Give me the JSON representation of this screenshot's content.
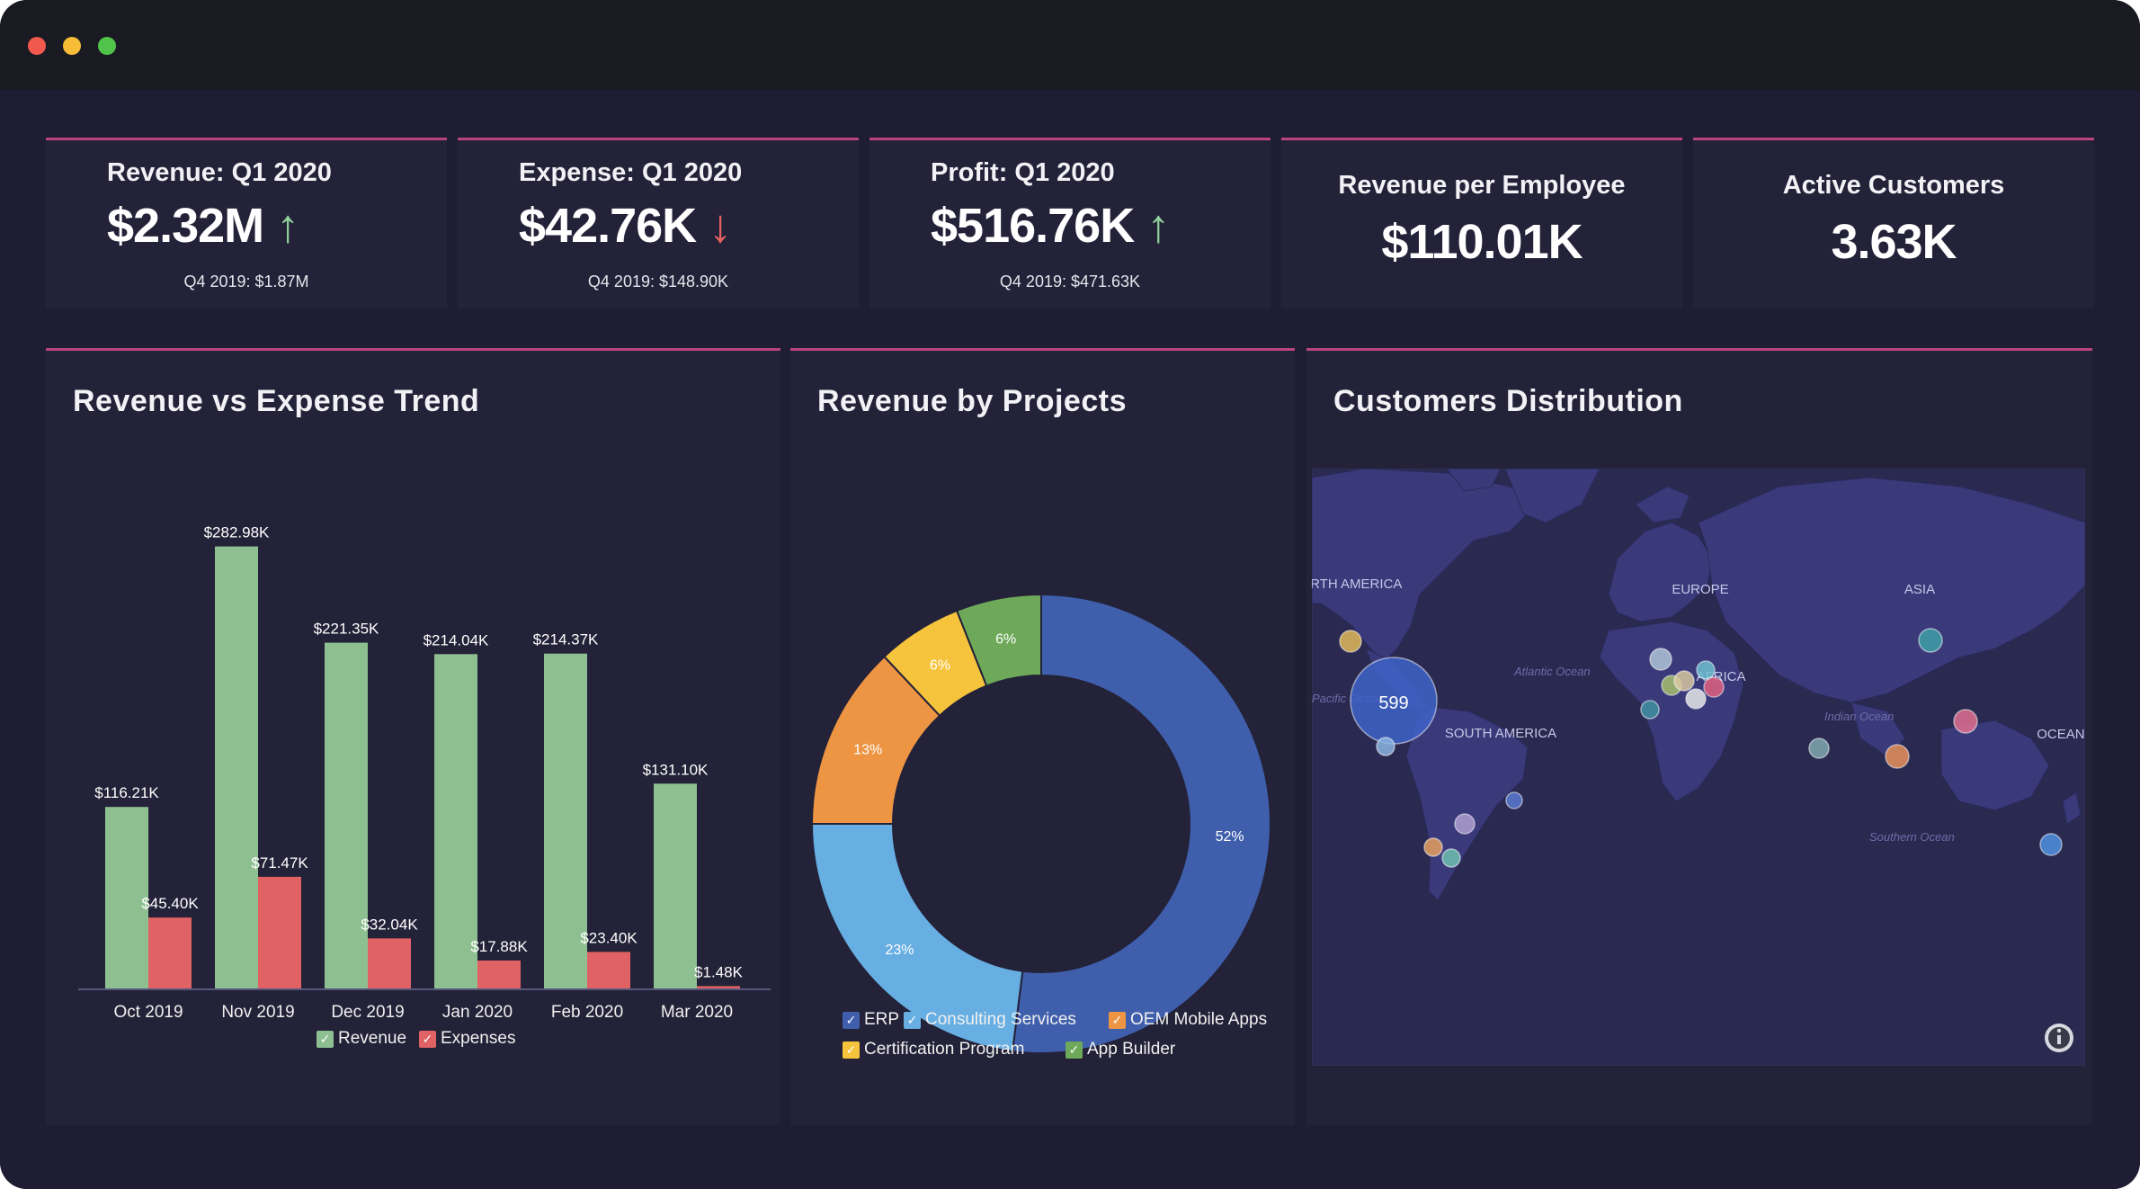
{
  "window": {
    "controls": [
      "close",
      "minimize",
      "maximize"
    ],
    "colors": {
      "close": "#f1594e",
      "minimize": "#f7bd37",
      "maximize": "#52c34a"
    }
  },
  "kpis": [
    {
      "title": "Revenue: Q1 2020",
      "value": "$2.32M",
      "trend": "up",
      "arrow": "↑",
      "subtitle": "Q4 2019: $1.87M"
    },
    {
      "title": "Expense: Q1 2020",
      "value": "$42.76K",
      "trend": "down",
      "arrow": "↓",
      "subtitle": "Q4 2019: $148.90K"
    },
    {
      "title": "Profit: Q1 2020",
      "value": "$516.76K",
      "trend": "up",
      "arrow": "↑",
      "subtitle": "Q4 2019: $471.63K"
    },
    {
      "title": "Revenue per Employee",
      "value": "$110.01K"
    },
    {
      "title": "Active Customers",
      "value": "3.63K"
    }
  ],
  "colors": {
    "background": "#1e1d33",
    "card": "#232238",
    "accent": "#b9457c",
    "up": "#8fd19a",
    "down": "#e8635f"
  },
  "panels": {
    "trend": {
      "title": "Revenue vs Expense Trend"
    },
    "projects": {
      "title": "Revenue by Projects"
    },
    "customers": {
      "title": "Customers Distribution"
    }
  },
  "chart_data": [
    {
      "type": "bar",
      "title": "Revenue vs Expense Trend",
      "categories": [
        "Oct 2019",
        "Nov 2019",
        "Dec 2019",
        "Jan 2020",
        "Feb 2020",
        "Mar 2020"
      ],
      "series": [
        {
          "name": "Revenue",
          "color": "#8ebf91",
          "values": [
            116.21,
            282.98,
            221.35,
            214.04,
            214.37,
            131.1
          ],
          "labels": [
            "$116.21K",
            "$282.98K",
            "$221.35K",
            "$214.04K",
            "$214.37K",
            "$131.10K"
          ]
        },
        {
          "name": "Expenses",
          "color": "#e06264",
          "values": [
            45.4,
            71.47,
            32.04,
            17.88,
            23.4,
            1.48
          ],
          "labels": [
            "$45.40K",
            "$71.47K",
            "$32.04K",
            "$17.88K",
            "$23.40K",
            "$1.48K"
          ]
        }
      ],
      "ylim": [
        0,
        300
      ],
      "legend": "bottom"
    },
    {
      "type": "pie",
      "title": "Revenue by Projects",
      "slices": [
        {
          "name": "ERP",
          "value": 52,
          "label": "52%",
          "color": "#3f5fad"
        },
        {
          "name": "Consulting Services",
          "value": 23,
          "label": "23%",
          "color": "#67aee3"
        },
        {
          "name": "OEM Mobile Apps",
          "value": 13,
          "label": "13%",
          "color": "#ee9544"
        },
        {
          "name": "Certification Program",
          "value": 6,
          "label": "6%",
          "color": "#f6c33d"
        },
        {
          "name": "App Builder",
          "value": 6,
          "label": "6%",
          "color": "#6ea95a"
        }
      ],
      "legend": "bottom"
    }
  ],
  "map": {
    "region_labels": [
      "NORTH AMERICA",
      "EUROPE",
      "ASIA",
      "AFRICA",
      "SOUTH AMERICA",
      "OCEANIA"
    ],
    "ocean_labels": [
      "Atlantic Ocean",
      "Pacific Ocean",
      "Indian Ocean",
      "Southern Ocean"
    ],
    "cluster_count": "599",
    "info_icon": "info-icon"
  }
}
